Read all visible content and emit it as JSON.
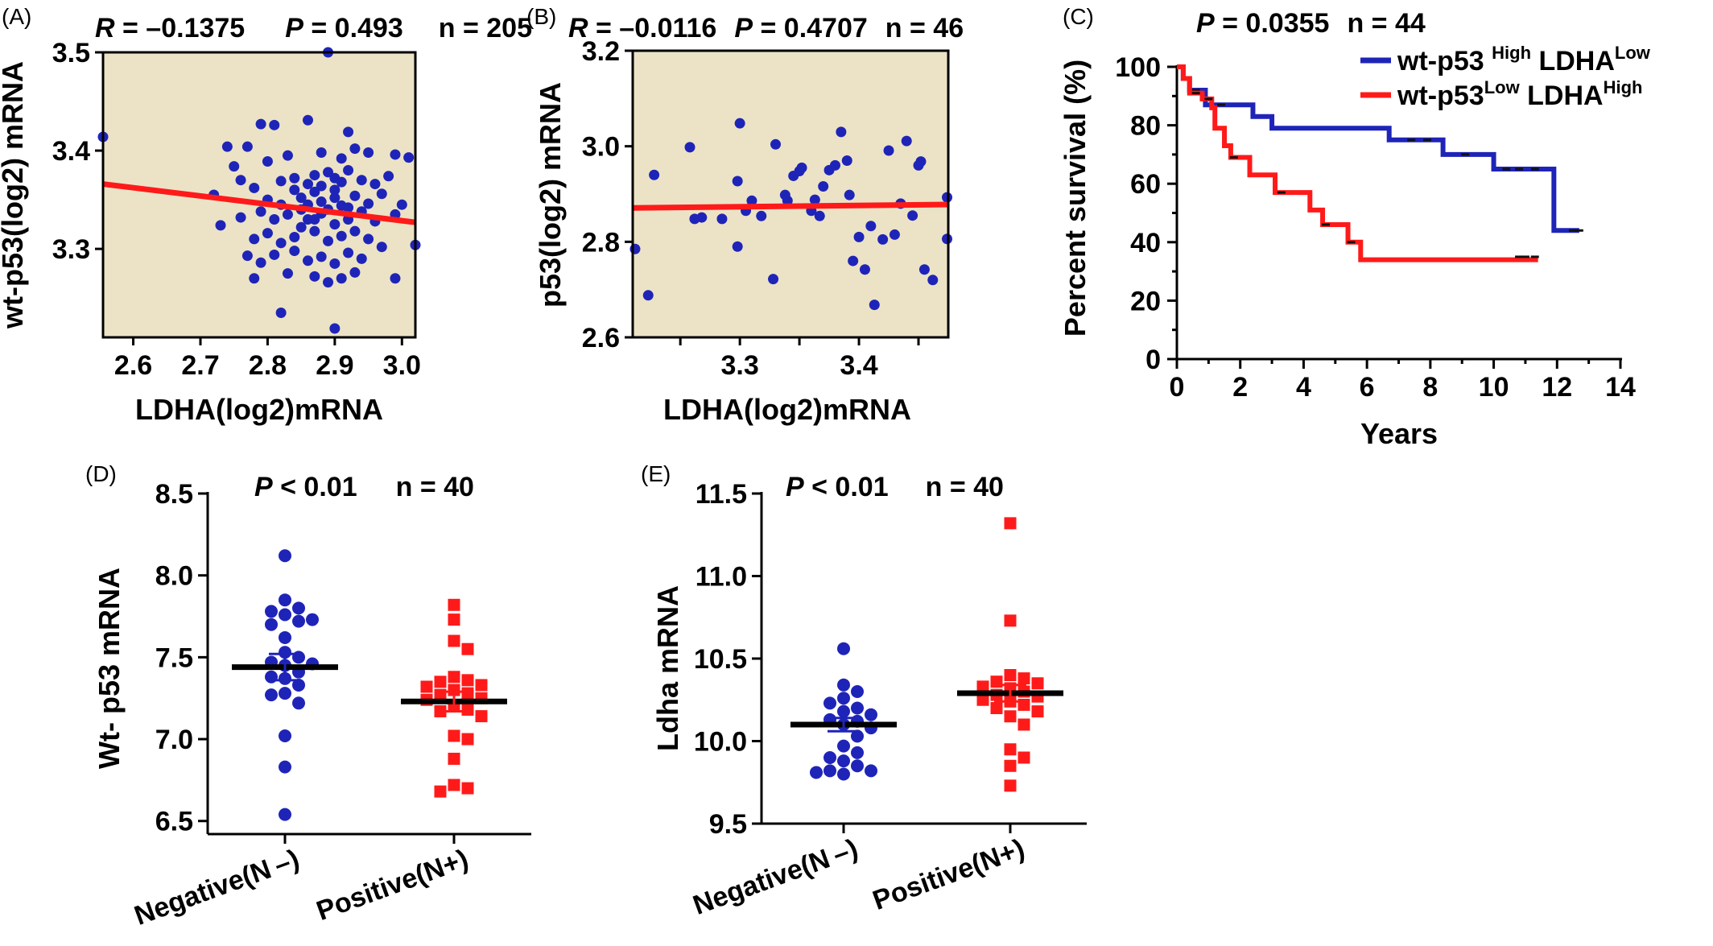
{
  "panels": {
    "A": {
      "label": "(A)",
      "stats": {
        "R": "R",
        "R_value": " = –0.1375",
        "P": "P",
        "P_value": " = 0.493",
        "n": "n = 205"
      },
      "chart_data": {
        "type": "scatter",
        "xlabel": "LDHA(log2)mRNA",
        "ylabel": "wt-p53(log2) mRNA",
        "xlim": [
          2.555,
          3.02
        ],
        "ylim": [
          3.21,
          3.5
        ],
        "x_ticks": [
          2.6,
          2.7,
          2.8,
          2.9,
          3.0
        ],
        "x_tick_labels": [
          "2.6",
          "2.7",
          "2.8",
          "2.9",
          "3.0"
        ],
        "y_ticks": [
          3.3,
          3.4,
          3.5
        ],
        "y_tick_labels": [
          "3.3",
          "3.4",
          "3.5"
        ],
        "background": "#ece3c6",
        "point_color": "#1f24b8",
        "fit_color": "#ff1a1a",
        "fit_line": [
          [
            2.555,
            3.366
          ],
          [
            3.02,
            3.327
          ]
        ],
        "points": [
          [
            2.555,
            3.414
          ],
          [
            2.89,
            3.5
          ],
          [
            2.74,
            3.404
          ],
          [
            2.77,
            3.404
          ],
          [
            2.79,
            3.427
          ],
          [
            2.81,
            3.426
          ],
          [
            2.86,
            3.431
          ],
          [
            2.92,
            3.419
          ],
          [
            2.75,
            3.384
          ],
          [
            2.8,
            3.389
          ],
          [
            2.83,
            3.395
          ],
          [
            2.88,
            3.398
          ],
          [
            2.91,
            3.392
          ],
          [
            2.93,
            3.402
          ],
          [
            2.95,
            3.398
          ],
          [
            2.99,
            3.396
          ],
          [
            3.01,
            3.393
          ],
          [
            2.76,
            3.37
          ],
          [
            2.78,
            3.362
          ],
          [
            2.82,
            3.369
          ],
          [
            2.84,
            3.372
          ],
          [
            2.86,
            3.366
          ],
          [
            2.87,
            3.375
          ],
          [
            2.89,
            3.378
          ],
          [
            2.9,
            3.372
          ],
          [
            2.92,
            3.38
          ],
          [
            2.94,
            3.37
          ],
          [
            2.96,
            3.366
          ],
          [
            2.98,
            3.374
          ],
          [
            2.72,
            3.355
          ],
          [
            2.8,
            3.35
          ],
          [
            2.82,
            3.345
          ],
          [
            2.85,
            3.352
          ],
          [
            2.87,
            3.358
          ],
          [
            2.88,
            3.348
          ],
          [
            2.9,
            3.352
          ],
          [
            2.91,
            3.344
          ],
          [
            2.93,
            3.354
          ],
          [
            2.95,
            3.346
          ],
          [
            2.97,
            3.356
          ],
          [
            3.0,
            3.345
          ],
          [
            2.73,
            3.324
          ],
          [
            2.76,
            3.332
          ],
          [
            2.79,
            3.338
          ],
          [
            2.81,
            3.33
          ],
          [
            2.83,
            3.335
          ],
          [
            2.85,
            3.34
          ],
          [
            2.86,
            3.33
          ],
          [
            2.88,
            3.336
          ],
          [
            2.9,
            3.325
          ],
          [
            2.92,
            3.33
          ],
          [
            2.94,
            3.338
          ],
          [
            2.96,
            3.328
          ],
          [
            2.99,
            3.335
          ],
          [
            2.78,
            3.31
          ],
          [
            2.8,
            3.316
          ],
          [
            2.82,
            3.306
          ],
          [
            2.84,
            3.312
          ],
          [
            2.87,
            3.318
          ],
          [
            2.89,
            3.308
          ],
          [
            2.91,
            3.313
          ],
          [
            2.93,
            3.318
          ],
          [
            2.95,
            3.31
          ],
          [
            2.97,
            3.302
          ],
          [
            3.02,
            3.304
          ],
          [
            2.77,
            3.293
          ],
          [
            2.79,
            3.286
          ],
          [
            2.81,
            3.294
          ],
          [
            2.84,
            3.298
          ],
          [
            2.86,
            3.288
          ],
          [
            2.88,
            3.292
          ],
          [
            2.9,
            3.285
          ],
          [
            2.92,
            3.296
          ],
          [
            2.94,
            3.29
          ],
          [
            2.99,
            3.27
          ],
          [
            2.78,
            3.27
          ],
          [
            2.83,
            3.275
          ],
          [
            2.87,
            3.272
          ],
          [
            2.89,
            3.266
          ],
          [
            2.91,
            3.27
          ],
          [
            2.93,
            3.276
          ],
          [
            2.82,
            3.235
          ],
          [
            2.9,
            3.219
          ],
          [
            2.84,
            3.36
          ],
          [
            2.86,
            3.345
          ],
          [
            2.88,
            3.364
          ],
          [
            2.89,
            3.34
          ],
          [
            2.9,
            3.36
          ],
          [
            2.91,
            3.368
          ],
          [
            2.92,
            3.342
          ],
          [
            2.87,
            3.33
          ],
          [
            2.85,
            3.322
          ]
        ]
      }
    },
    "B": {
      "label": "(B)",
      "stats": {
        "R": "R",
        "R_value": " = –0.0116",
        "P": "P",
        "P_value": " = 0.4707",
        "n": "n = 46"
      },
      "chart_data": {
        "type": "scatter",
        "xlabel": "LDHA(log2)mRNA",
        "ylabel": "p53(log2) mRNA",
        "xlim": [
          3.21,
          3.475
        ],
        "ylim": [
          2.6,
          3.2
        ],
        "x_ticks": [
          3.25,
          3.3,
          3.35,
          3.4,
          3.45
        ],
        "x_tick_labels": [
          "",
          "3.3",
          "",
          "3.4",
          ""
        ],
        "y_ticks": [
          2.6,
          2.8,
          3.0,
          3.2
        ],
        "y_tick_labels": [
          "2.6",
          "2.8",
          "3.0",
          "3.2"
        ],
        "background": "#ece3c6",
        "point_color": "#1f24b8",
        "fit_color": "#ff1a1a",
        "fit_line": [
          [
            3.21,
            2.871
          ],
          [
            3.475,
            2.878
          ]
        ],
        "points": [
          [
            3.212,
            2.785
          ],
          [
            3.223,
            2.688
          ],
          [
            3.228,
            2.94
          ],
          [
            3.258,
            2.998
          ],
          [
            3.262,
            2.848
          ],
          [
            3.268,
            2.851
          ],
          [
            3.285,
            2.848
          ],
          [
            3.3,
            3.048
          ],
          [
            3.298,
            2.927
          ],
          [
            3.298,
            2.79
          ],
          [
            3.305,
            2.865
          ],
          [
            3.31,
            2.886
          ],
          [
            3.318,
            2.854
          ],
          [
            3.328,
            2.722
          ],
          [
            3.33,
            3.004
          ],
          [
            3.338,
            2.898
          ],
          [
            3.34,
            2.886
          ],
          [
            3.345,
            2.938
          ],
          [
            3.35,
            2.948
          ],
          [
            3.352,
            2.955
          ],
          [
            3.36,
            2.865
          ],
          [
            3.363,
            2.888
          ],
          [
            3.367,
            2.854
          ],
          [
            3.37,
            2.916
          ],
          [
            3.375,
            2.95
          ],
          [
            3.38,
            2.96
          ],
          [
            3.385,
            3.03
          ],
          [
            3.39,
            2.97
          ],
          [
            3.392,
            2.898
          ],
          [
            3.395,
            2.76
          ],
          [
            3.4,
            2.81
          ],
          [
            3.405,
            2.742
          ],
          [
            3.41,
            2.833
          ],
          [
            3.413,
            2.668
          ],
          [
            3.42,
            2.805
          ],
          [
            3.425,
            2.991
          ],
          [
            3.43,
            2.815
          ],
          [
            3.435,
            2.88
          ],
          [
            3.44,
            3.011
          ],
          [
            3.445,
            2.855
          ],
          [
            3.45,
            2.96
          ],
          [
            3.452,
            2.968
          ],
          [
            3.455,
            2.742
          ],
          [
            3.462,
            2.72
          ],
          [
            3.474,
            2.893
          ],
          [
            3.474,
            2.806
          ]
        ]
      }
    },
    "C": {
      "label": "(C)",
      "stats": {
        "P": "P",
        "P_value": " = 0.0355",
        "n": "n = 44"
      },
      "legend": [
        {
          "base": "wt-p53 ",
          "sup1": "High",
          "mid": " LDHA",
          "sup2": "Low",
          "color": "#1f24b8"
        },
        {
          "base": "wt-p53",
          "sup1": "Low",
          "mid": " LDHA",
          "sup2": "High",
          "color": "#ff1a1a"
        }
      ],
      "chart_data": {
        "type": "line",
        "xlabel": "Years",
        "ylabel": "Percent survival (%)",
        "xlim": [
          0,
          14
        ],
        "ylim": [
          0,
          100
        ],
        "x_ticks": [
          0,
          2,
          4,
          6,
          8,
          10,
          12,
          14
        ],
        "x_tick_labels": [
          "0",
          "2",
          "4",
          "6",
          "8",
          "10",
          "12",
          "14"
        ],
        "y_ticks": [
          0,
          20,
          40,
          60,
          80,
          100
        ],
        "y_tick_labels": [
          "0",
          "20",
          "40",
          "60",
          "80",
          "100"
        ],
        "series": [
          {
            "color": "#1f24b8",
            "steps": [
              [
                0,
                100
              ],
              [
                0.2,
                96
              ],
              [
                0.4,
                92
              ],
              [
                0.9,
                87
              ],
              [
                2.4,
                83
              ],
              [
                3.0,
                79
              ],
              [
                6.7,
                75
              ],
              [
                8.4,
                70
              ],
              [
                10.0,
                65
              ],
              [
                11.9,
                44
              ],
              [
                12.7,
                44
              ]
            ],
            "censor": [
              [
                0.6,
                92
              ],
              [
                1.4,
                87
              ],
              [
                7.4,
                75
              ],
              [
                7.9,
                75
              ],
              [
                9.1,
                70
              ],
              [
                10.4,
                65
              ],
              [
                10.8,
                65
              ],
              [
                11.3,
                65
              ],
              [
                12.5,
                44
              ],
              [
                12.7,
                44
              ]
            ]
          },
          {
            "color": "#ff1a1a",
            "steps": [
              [
                0,
                100
              ],
              [
                0.2,
                96
              ],
              [
                0.4,
                91
              ],
              [
                0.8,
                89
              ],
              [
                1.1,
                86
              ],
              [
                1.2,
                79
              ],
              [
                1.5,
                73
              ],
              [
                1.7,
                69
              ],
              [
                2.3,
                63
              ],
              [
                3.1,
                57
              ],
              [
                4.2,
                51
              ],
              [
                4.6,
                46
              ],
              [
                5.4,
                40
              ],
              [
                5.8,
                34
              ],
              [
                11.4,
                34
              ]
            ],
            "censor": [
              [
                0.6,
                91
              ],
              [
                1.0,
                89
              ],
              [
                1.8,
                69
              ],
              [
                3.3,
                57
              ],
              [
                4.7,
                46
              ],
              [
                5.5,
                40
              ],
              [
                10.8,
                35
              ],
              [
                11.0,
                35
              ],
              [
                11.3,
                35
              ]
            ]
          }
        ]
      }
    },
    "D": {
      "label": "(D)",
      "stats": {
        "P": "P",
        "P_value": " < 0.01",
        "n": "n = 40"
      },
      "chart_data": {
        "type": "scatter",
        "ylabel": "Wt- p53 mRNA",
        "categories": [
          "Negative(N –)",
          "Positive(N+)"
        ],
        "ylim": [
          6.42,
          8.5
        ],
        "y_ticks": [
          6.5,
          7.0,
          7.5,
          8.0,
          8.5
        ],
        "y_tick_labels": [
          "6.5",
          "7.0",
          "7.5",
          "8.0",
          "8.5"
        ],
        "series": [
          {
            "marker": "circle",
            "color": "#1f24b8",
            "mean": 7.44,
            "sem": 0.08,
            "values": [
              8.12,
              7.85,
              7.8,
              7.78,
              7.76,
              7.73,
              7.72,
              7.7,
              7.62,
              7.53,
              7.5,
              7.47,
              7.46,
              7.45,
              7.41,
              7.38,
              7.37,
              7.33,
              7.28,
              7.27,
              7.22,
              7.02,
              6.83,
              6.54
            ]
          },
          {
            "marker": "square",
            "color": "#ff1a1a",
            "mean": 7.23,
            "sem": 0.06,
            "values": [
              7.82,
              7.73,
              7.6,
              7.55,
              7.38,
              7.36,
              7.35,
              7.33,
              7.32,
              7.3,
              7.28,
              7.27,
              7.25,
              7.24,
              7.2,
              7.18,
              7.17,
              7.14,
              7.02,
              7.0,
              6.88,
              6.72,
              6.7,
              6.68
            ]
          }
        ]
      }
    },
    "E": {
      "label": "(E)",
      "stats": {
        "P": "P",
        "P_value": " < 0.01",
        "n": "n = 40"
      },
      "chart_data": {
        "type": "scatter",
        "ylabel": "Ldha mRNA",
        "categories": [
          "Negative(N –)",
          "Positive(N+)"
        ],
        "ylim": [
          9.5,
          11.5
        ],
        "y_ticks": [
          9.5,
          10.0,
          10.5,
          11.0,
          11.5
        ],
        "y_tick_labels": [
          "9.5",
          "10.0",
          "10.5",
          "11.0",
          "11.5"
        ],
        "series": [
          {
            "marker": "circle",
            "color": "#1f24b8",
            "mean": 10.1,
            "sem": 0.04,
            "values": [
              10.56,
              10.34,
              10.3,
              10.26,
              10.23,
              10.2,
              10.18,
              10.16,
              10.13,
              10.12,
              10.1,
              10.08,
              10.03,
              9.97,
              9.93,
              9.9,
              9.88,
              9.85,
              9.82,
              9.82,
              9.81,
              9.8
            ]
          },
          {
            "marker": "square",
            "color": "#ff1a1a",
            "mean": 10.29,
            "sem": 0.05,
            "values": [
              11.32,
              10.73,
              10.4,
              10.38,
              10.36,
              10.35,
              10.33,
              10.32,
              10.3,
              10.28,
              10.27,
              10.25,
              10.24,
              10.22,
              10.2,
              10.18,
              10.15,
              10.1,
              9.95,
              9.9,
              9.85,
              9.73
            ]
          }
        ]
      }
    }
  }
}
